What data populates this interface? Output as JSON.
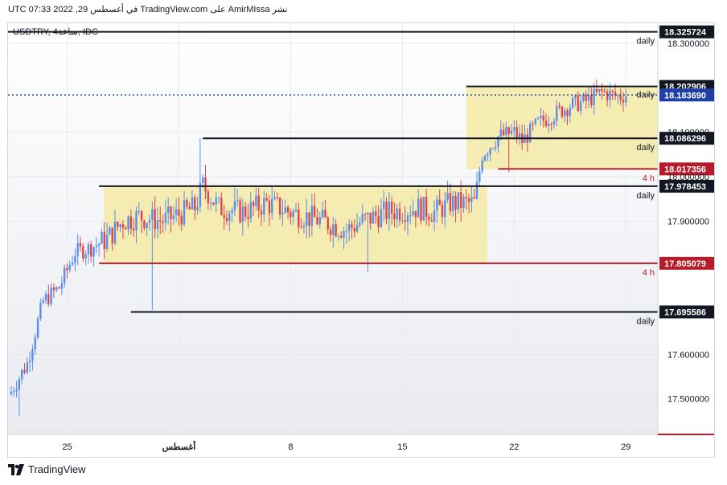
{
  "header": {
    "published_by": "نشر AmirMIssa على TradingView.com في أغسطس 29, 2022 07:33 UTC"
  },
  "symbol_legend": "USDTRY, 4ساعة, IDC",
  "footer": {
    "brand": "TradingView"
  },
  "colors": {
    "up": "#5b8def",
    "down": "#e0444c",
    "zone_fill": "#f5eaa6",
    "level_black": "#131722",
    "level_red": "#b71c2a",
    "last_price": "#1e3fa8"
  },
  "chart_data": {
    "type": "candlestick",
    "title": "",
    "symbol": "USDTRY",
    "interval": "4h",
    "xlabel": "",
    "ylabel": "",
    "x_ticks": [
      "25",
      "أغسطس",
      "8",
      "15",
      "22",
      "29"
    ],
    "x_tick_days": [
      25,
      32,
      39,
      46,
      53,
      60
    ],
    "x_range_days": [
      21.3,
      62.0
    ],
    "ylim": [
      17.42,
      18.345
    ],
    "y_ticks": [
      "18.300000",
      "18.100000",
      "18.000000",
      "17.900000",
      "17.600000",
      "17.500000"
    ],
    "y_tick_values": [
      18.3,
      18.1,
      18.0,
      17.9,
      17.6,
      17.5
    ],
    "levels": [
      {
        "price": 18.325724,
        "label": "18.325724",
        "tag": "daily",
        "color": "black",
        "x_start_day": 21.3
      },
      {
        "price": 18.202906,
        "label": "18.202906",
        "tag": "",
        "color": "black",
        "x_start_day": 50.0
      },
      {
        "price": 18.086296,
        "label": "18.086296",
        "tag": "daily",
        "color": "black",
        "x_start_day": 33.5
      },
      {
        "price": 18.017356,
        "label": "18.017356",
        "tag": "4 h",
        "color": "red",
        "x_start_day": 52.0
      },
      {
        "price": 17.978453,
        "label": "17.978453",
        "tag": "daily",
        "color": "black",
        "x_start_day": 27.0
      },
      {
        "price": 17.805079,
        "label": "17.805079",
        "tag": "4 h",
        "color": "red",
        "x_start_day": 27.0
      },
      {
        "price": 17.695586,
        "label": "17.695586",
        "tag": "daily",
        "color": "black",
        "x_start_day": 29.0
      }
    ],
    "last_price": {
      "price": 18.18369,
      "label": "18.183690",
      "tag": "daily"
    },
    "zones": [
      {
        "x_from_day": 27.3,
        "x_to_day": 51.3,
        "price_low": 17.805,
        "price_high": 17.978
      },
      {
        "x_from_day": 50.0,
        "x_to_day": 62.0,
        "price_low": 18.017,
        "price_high": 18.203
      }
    ],
    "ohlc_anchors": [
      {
        "day": 21.4,
        "price": 17.51
      },
      {
        "day": 22.5,
        "price": 17.58
      },
      {
        "day": 23.5,
        "price": 17.72
      },
      {
        "day": 24.5,
        "price": 17.75
      },
      {
        "day": 25.5,
        "price": 17.83
      },
      {
        "day": 26.5,
        "price": 17.84
      },
      {
        "day": 27.5,
        "price": 17.86
      },
      {
        "day": 28.5,
        "price": 17.9
      },
      {
        "day": 29.5,
        "price": 17.91
      },
      {
        "day": 31.0,
        "price": 17.9
      },
      {
        "day": 33.0,
        "price": 17.93
      },
      {
        "day": 33.5,
        "price": 17.98
      },
      {
        "day": 34.5,
        "price": 17.93
      },
      {
        "day": 36.0,
        "price": 17.92
      },
      {
        "day": 37.5,
        "price": 17.94
      },
      {
        "day": 39.0,
        "price": 17.92
      },
      {
        "day": 41.0,
        "price": 17.9
      },
      {
        "day": 42.5,
        "price": 17.88
      },
      {
        "day": 43.5,
        "price": 17.9
      },
      {
        "day": 45.0,
        "price": 17.92
      },
      {
        "day": 47.0,
        "price": 17.93
      },
      {
        "day": 48.0,
        "price": 17.92
      },
      {
        "day": 49.0,
        "price": 17.94
      },
      {
        "day": 50.5,
        "price": 17.94
      },
      {
        "day": 51.0,
        "price": 18.05
      },
      {
        "day": 52.0,
        "price": 18.09
      },
      {
        "day": 53.0,
        "price": 18.1
      },
      {
        "day": 53.5,
        "price": 18.08
      },
      {
        "day": 54.5,
        "price": 18.12
      },
      {
        "day": 55.5,
        "price": 18.14
      },
      {
        "day": 56.5,
        "price": 18.16
      },
      {
        "day": 57.5,
        "price": 18.17
      },
      {
        "day": 58.5,
        "price": 18.19
      },
      {
        "day": 59.5,
        "price": 18.18
      },
      {
        "day": 60.0,
        "price": 18.184
      }
    ],
    "extremes": [
      {
        "day": 22.0,
        "low": 17.46
      },
      {
        "day": 30.4,
        "low": 17.7
      },
      {
        "day": 33.4,
        "high": 18.086
      },
      {
        "day": 43.8,
        "low": 17.785
      },
      {
        "day": 52.6,
        "low": 18.01
      },
      {
        "day": 58.5,
        "high": 18.21
      }
    ]
  }
}
